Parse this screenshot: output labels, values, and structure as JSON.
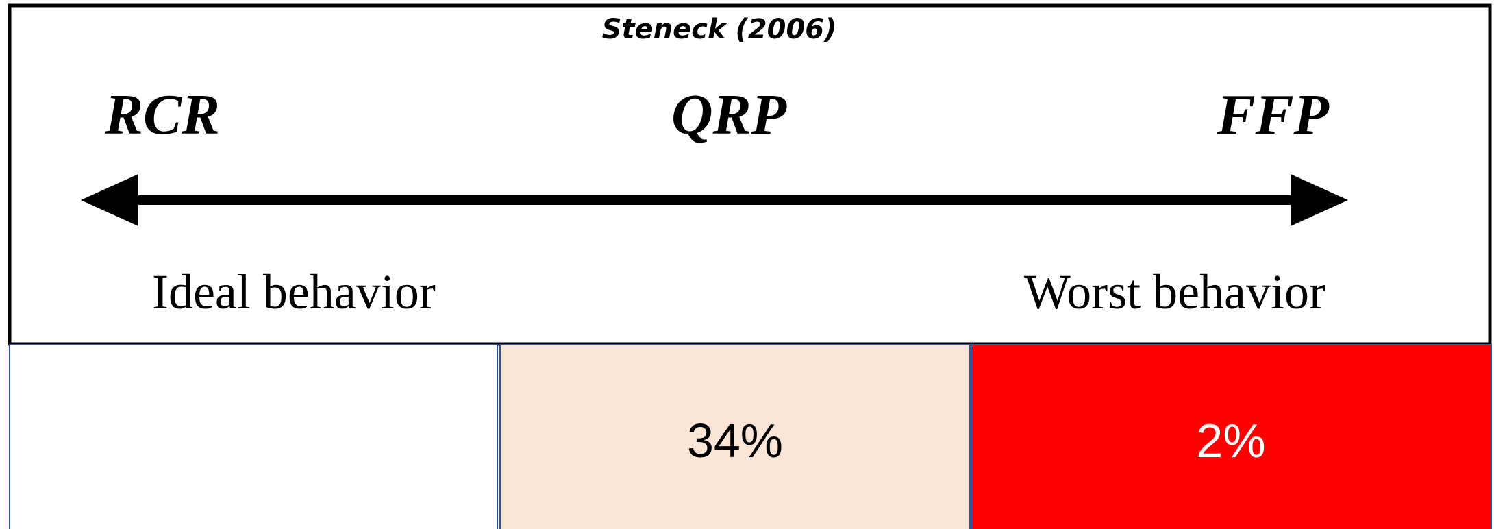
{
  "title": "Steneck (2006)",
  "scale": {
    "left": "RCR",
    "middle": "QRP",
    "right": "FFP",
    "left_caption": "Ideal behavior",
    "right_caption": "Worst behavior"
  },
  "cells": [
    {
      "label": "34%"
    },
    {
      "label": "2%"
    }
  ]
}
